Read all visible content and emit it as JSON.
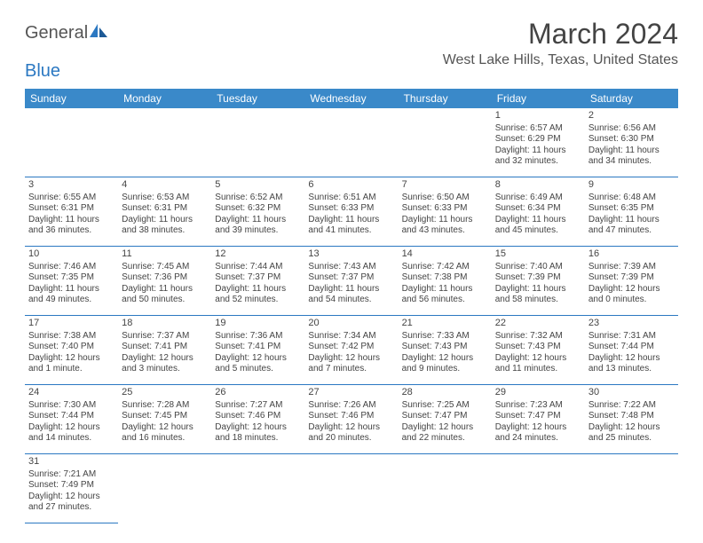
{
  "logo": {
    "text1": "General",
    "text2": "Blue"
  },
  "title": "March 2024",
  "location": "West Lake Hills, Texas, United States",
  "colors": {
    "header_bg": "#3a89c9",
    "header_text": "#ffffff",
    "border": "#2b78c2",
    "text": "#444444"
  },
  "day_names": [
    "Sunday",
    "Monday",
    "Tuesday",
    "Wednesday",
    "Thursday",
    "Friday",
    "Saturday"
  ],
  "weeks": [
    [
      null,
      null,
      null,
      null,
      null,
      {
        "n": "1",
        "sr": "6:57 AM",
        "ss": "6:29 PM",
        "dl1": "11 hours",
        "dl2": "and 32 minutes."
      },
      {
        "n": "2",
        "sr": "6:56 AM",
        "ss": "6:30 PM",
        "dl1": "11 hours",
        "dl2": "and 34 minutes."
      }
    ],
    [
      {
        "n": "3",
        "sr": "6:55 AM",
        "ss": "6:31 PM",
        "dl1": "11 hours",
        "dl2": "and 36 minutes."
      },
      {
        "n": "4",
        "sr": "6:53 AM",
        "ss": "6:31 PM",
        "dl1": "11 hours",
        "dl2": "and 38 minutes."
      },
      {
        "n": "5",
        "sr": "6:52 AM",
        "ss": "6:32 PM",
        "dl1": "11 hours",
        "dl2": "and 39 minutes."
      },
      {
        "n": "6",
        "sr": "6:51 AM",
        "ss": "6:33 PM",
        "dl1": "11 hours",
        "dl2": "and 41 minutes."
      },
      {
        "n": "7",
        "sr": "6:50 AM",
        "ss": "6:33 PM",
        "dl1": "11 hours",
        "dl2": "and 43 minutes."
      },
      {
        "n": "8",
        "sr": "6:49 AM",
        "ss": "6:34 PM",
        "dl1": "11 hours",
        "dl2": "and 45 minutes."
      },
      {
        "n": "9",
        "sr": "6:48 AM",
        "ss": "6:35 PM",
        "dl1": "11 hours",
        "dl2": "and 47 minutes."
      }
    ],
    [
      {
        "n": "10",
        "sr": "7:46 AM",
        "ss": "7:35 PM",
        "dl1": "11 hours",
        "dl2": "and 49 minutes."
      },
      {
        "n": "11",
        "sr": "7:45 AM",
        "ss": "7:36 PM",
        "dl1": "11 hours",
        "dl2": "and 50 minutes."
      },
      {
        "n": "12",
        "sr": "7:44 AM",
        "ss": "7:37 PM",
        "dl1": "11 hours",
        "dl2": "and 52 minutes."
      },
      {
        "n": "13",
        "sr": "7:43 AM",
        "ss": "7:37 PM",
        "dl1": "11 hours",
        "dl2": "and 54 minutes."
      },
      {
        "n": "14",
        "sr": "7:42 AM",
        "ss": "7:38 PM",
        "dl1": "11 hours",
        "dl2": "and 56 minutes."
      },
      {
        "n": "15",
        "sr": "7:40 AM",
        "ss": "7:39 PM",
        "dl1": "11 hours",
        "dl2": "and 58 minutes."
      },
      {
        "n": "16",
        "sr": "7:39 AM",
        "ss": "7:39 PM",
        "dl1": "12 hours",
        "dl2": "and 0 minutes."
      }
    ],
    [
      {
        "n": "17",
        "sr": "7:38 AM",
        "ss": "7:40 PM",
        "dl1": "12 hours",
        "dl2": "and 1 minute."
      },
      {
        "n": "18",
        "sr": "7:37 AM",
        "ss": "7:41 PM",
        "dl1": "12 hours",
        "dl2": "and 3 minutes."
      },
      {
        "n": "19",
        "sr": "7:36 AM",
        "ss": "7:41 PM",
        "dl1": "12 hours",
        "dl2": "and 5 minutes."
      },
      {
        "n": "20",
        "sr": "7:34 AM",
        "ss": "7:42 PM",
        "dl1": "12 hours",
        "dl2": "and 7 minutes."
      },
      {
        "n": "21",
        "sr": "7:33 AM",
        "ss": "7:43 PM",
        "dl1": "12 hours",
        "dl2": "and 9 minutes."
      },
      {
        "n": "22",
        "sr": "7:32 AM",
        "ss": "7:43 PM",
        "dl1": "12 hours",
        "dl2": "and 11 minutes."
      },
      {
        "n": "23",
        "sr": "7:31 AM",
        "ss": "7:44 PM",
        "dl1": "12 hours",
        "dl2": "and 13 minutes."
      }
    ],
    [
      {
        "n": "24",
        "sr": "7:30 AM",
        "ss": "7:44 PM",
        "dl1": "12 hours",
        "dl2": "and 14 minutes."
      },
      {
        "n": "25",
        "sr": "7:28 AM",
        "ss": "7:45 PM",
        "dl1": "12 hours",
        "dl2": "and 16 minutes."
      },
      {
        "n": "26",
        "sr": "7:27 AM",
        "ss": "7:46 PM",
        "dl1": "12 hours",
        "dl2": "and 18 minutes."
      },
      {
        "n": "27",
        "sr": "7:26 AM",
        "ss": "7:46 PM",
        "dl1": "12 hours",
        "dl2": "and 20 minutes."
      },
      {
        "n": "28",
        "sr": "7:25 AM",
        "ss": "7:47 PM",
        "dl1": "12 hours",
        "dl2": "and 22 minutes."
      },
      {
        "n": "29",
        "sr": "7:23 AM",
        "ss": "7:47 PM",
        "dl1": "12 hours",
        "dl2": "and 24 minutes."
      },
      {
        "n": "30",
        "sr": "7:22 AM",
        "ss": "7:48 PM",
        "dl1": "12 hours",
        "dl2": "and 25 minutes."
      }
    ],
    [
      {
        "n": "31",
        "sr": "7:21 AM",
        "ss": "7:49 PM",
        "dl1": "12 hours",
        "dl2": "and 27 minutes."
      },
      null,
      null,
      null,
      null,
      null,
      null
    ]
  ],
  "labels": {
    "sunrise": "Sunrise:",
    "sunset": "Sunset:",
    "daylight": "Daylight:"
  }
}
